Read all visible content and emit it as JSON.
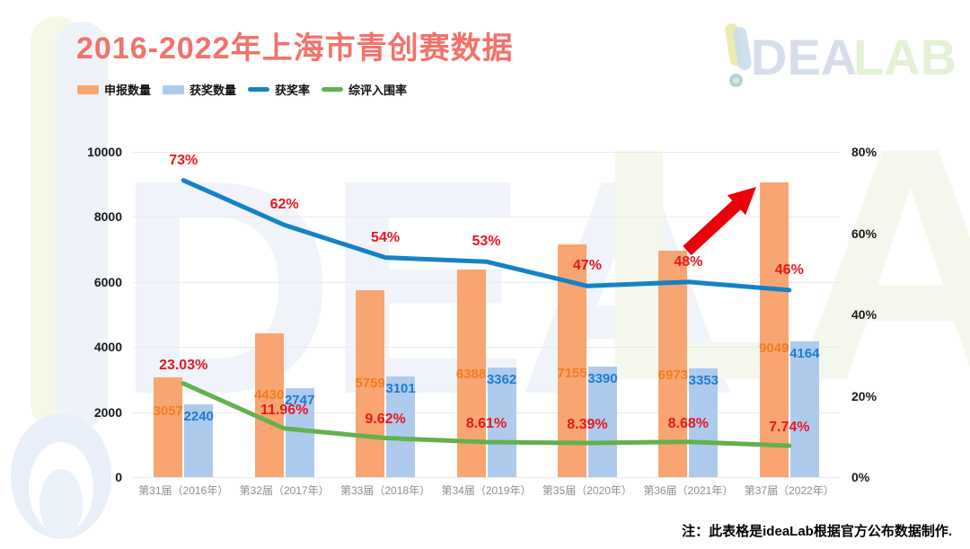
{
  "title": "2016-2022年上海市青创赛数据",
  "logo": {
    "excl": "exclamation-mark",
    "part1": "DEA",
    "part2": "LAB"
  },
  "note": "注：此表格是ideaLab根据官方公布数据制作.",
  "legend": [
    {
      "label": "申报数量",
      "type": "bar",
      "color": "#f8a571"
    },
    {
      "label": "获奖数量",
      "type": "bar",
      "color": "#aecbee"
    },
    {
      "label": "获奖率",
      "type": "line",
      "color": "#1482c6"
    },
    {
      "label": "综评入围率",
      "type": "line",
      "color": "#63b14c"
    }
  ],
  "colors": {
    "bar_orange": "#f8a571",
    "bar_blue": "#aecbee",
    "line_blue": "#1482c6",
    "line_green": "#63b14c",
    "red_label": "#e8161d",
    "orange_value_label": "#f47b1f",
    "blue_value_label": "#1b7cd0",
    "title": "#f3726a",
    "arrow": "#e8000b"
  },
  "chart_data": {
    "type": "bar",
    "title": "2016-2022年上海市青创赛数据",
    "categories": [
      "第31届（2016年）",
      "第32届（2017年）",
      "第33届（2018年）",
      "第34届（2019年）",
      "第35届（2020年）",
      "第36届（2021年）",
      "第37届（2022年）"
    ],
    "series": [
      {
        "name": "申报数量",
        "type": "bar",
        "axis": "left",
        "color": "#f8a571",
        "values": [
          3057,
          4430,
          5759,
          6388,
          7155,
          6973,
          9049
        ]
      },
      {
        "name": "获奖数量",
        "type": "bar",
        "axis": "left",
        "color": "#aecbee",
        "values": [
          2240,
          2747,
          3101,
          3362,
          3390,
          3353,
          4164
        ]
      },
      {
        "name": "获奖率",
        "type": "line",
        "axis": "right",
        "color": "#1482c6",
        "values": [
          73,
          62,
          54,
          53,
          47,
          48,
          46
        ],
        "labels": [
          "73%",
          "62%",
          "54%",
          "53%",
          "47%",
          "48%",
          "46%"
        ]
      },
      {
        "name": "综评入围率",
        "type": "line",
        "axis": "right",
        "color": "#63b14c",
        "values": [
          23.03,
          11.96,
          9.62,
          8.61,
          8.39,
          8.68,
          7.74
        ],
        "labels": [
          "23.03%",
          "11.96%",
          "9.62%",
          "8.61%",
          "8.39%",
          "8.68%",
          "7.74%"
        ]
      }
    ],
    "left_axis": {
      "max": 10000,
      "ticks": [
        "10000",
        "8000",
        "6000",
        "4000",
        "2000",
        "0"
      ]
    },
    "right_axis": {
      "max": 80,
      "ticks": [
        "80%",
        "60%",
        "40%",
        "20%",
        "0%"
      ]
    },
    "grid": true,
    "legend_position": "top-left",
    "annotation": "red arrow pointing up toward 2022 bar"
  }
}
